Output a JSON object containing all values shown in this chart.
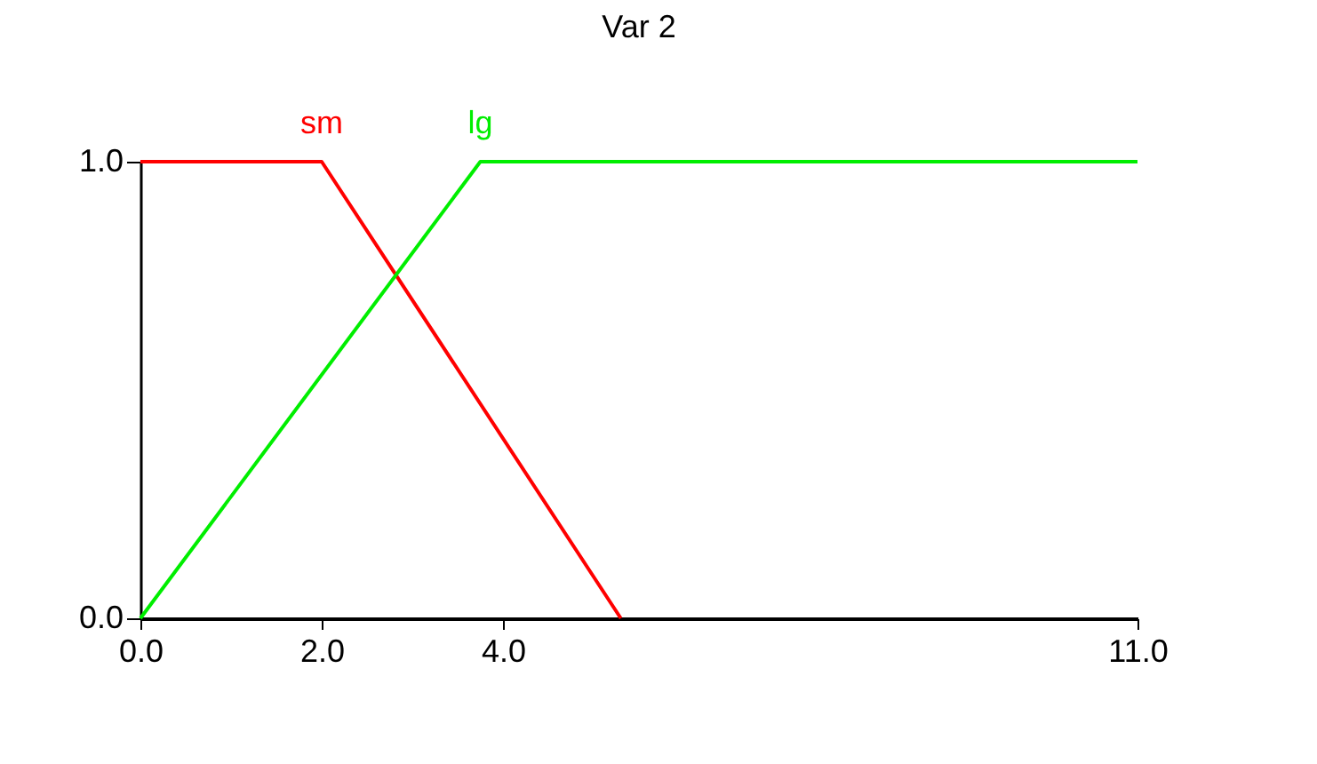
{
  "chart_data": {
    "type": "line",
    "title": "Var 2",
    "series": [
      {
        "name": "sm",
        "color": "#ff0000",
        "x": [
          0,
          2,
          5.3
        ],
        "values": [
          1,
          1,
          0
        ]
      },
      {
        "name": "lg",
        "color": "#00ee00",
        "x": [
          0,
          3.75,
          11
        ],
        "values": [
          0,
          1,
          1
        ]
      }
    ],
    "xlim": [
      0,
      11
    ],
    "ylim": [
      0,
      1
    ],
    "xticks": [
      {
        "value": 0,
        "label": "0.0"
      },
      {
        "value": 2,
        "label": "2.0"
      },
      {
        "value": 4,
        "label": "4.0"
      },
      {
        "value": 11,
        "label": "11.0"
      }
    ],
    "yticks": [
      {
        "value": 0,
        "label": "0.0"
      },
      {
        "value": 1,
        "label": "1.0"
      }
    ]
  }
}
